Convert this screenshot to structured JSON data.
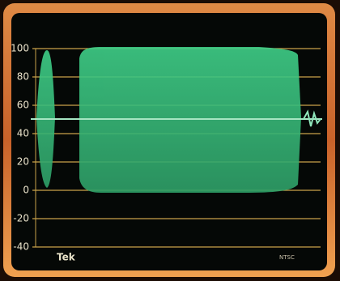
{
  "chart_data": {
    "type": "waveform",
    "brand": "Tek",
    "mode": "NTSC",
    "ylim": [
      -40,
      100
    ],
    "yticks": [
      100,
      80,
      60,
      40,
      20,
      0,
      -20,
      -40
    ],
    "grid": true,
    "grid_color": "#c9a24a"
  }
}
